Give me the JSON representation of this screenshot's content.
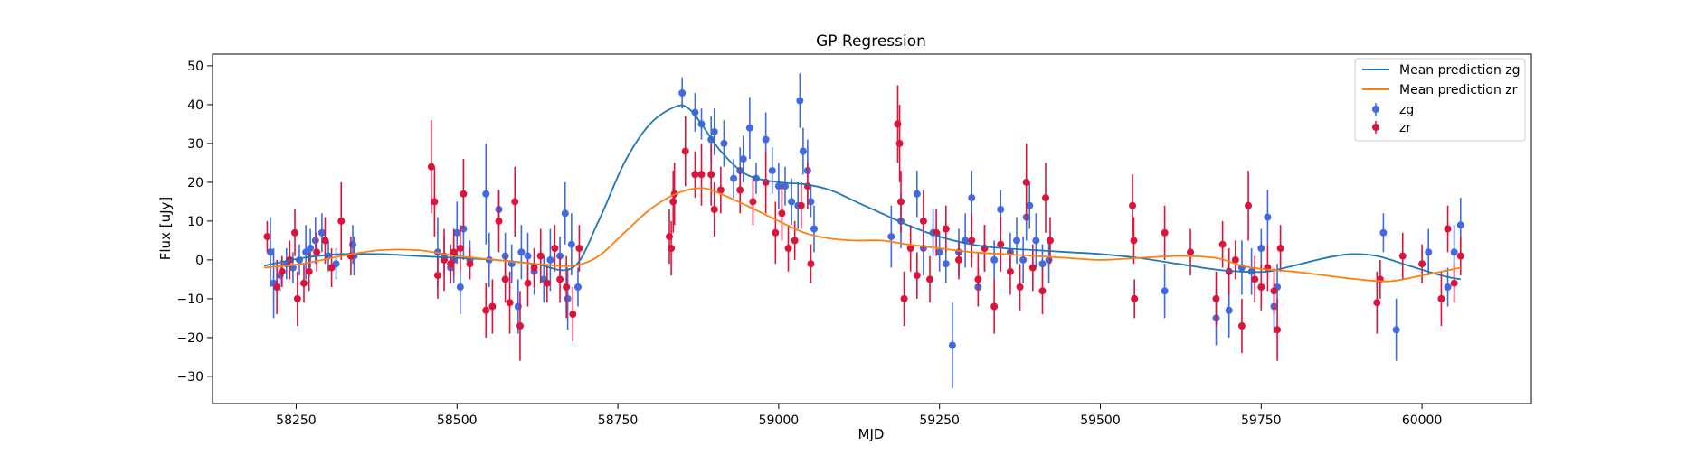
{
  "chart_data": {
    "type": "scatter",
    "title": "GP Regression",
    "xlabel": "MJD",
    "ylabel": "Flux [uJy]",
    "xlim": [
      58120,
      60170
    ],
    "ylim": [
      -37,
      53
    ],
    "xticks": [
      58250,
      58500,
      58750,
      59000,
      59250,
      59500,
      59750,
      60000
    ],
    "yticks": [
      -30,
      -20,
      -10,
      0,
      10,
      20,
      30,
      40,
      50
    ],
    "grid": false,
    "legend_position": "top-right",
    "legend": [
      {
        "label": "Mean prediction zg",
        "kind": "line",
        "color": "#1f77b4"
      },
      {
        "label": "Mean prediction zr",
        "kind": "line",
        "color": "#ff7f0e"
      },
      {
        "label": "zg",
        "kind": "errorbar",
        "color": "#4169e1"
      },
      {
        "label": "zr",
        "kind": "errorbar",
        "color": "#dc143c"
      }
    ],
    "series": [
      {
        "name": "Mean prediction zg",
        "kind": "line",
        "color": "#1f77b4",
        "x": [
          58200,
          58260,
          58320,
          58380,
          58440,
          58500,
          58560,
          58620,
          58680,
          58720,
          58760,
          58800,
          58840,
          58860,
          58880,
          58910,
          58950,
          59000,
          59040,
          59080,
          59120,
          59160,
          59200,
          59250,
          59300,
          59350,
          59400,
          59450,
          59500,
          59560,
          59620,
          59680,
          59720,
          59760,
          59800,
          59850,
          59890,
          59930,
          59980,
          60030,
          60060
        ],
        "y": [
          -1.5,
          0.5,
          1.5,
          1.5,
          1.0,
          0.5,
          0.0,
          -1.0,
          -2.0,
          10.0,
          25.0,
          35.0,
          39.5,
          39.0,
          35.0,
          28.0,
          22.0,
          20.0,
          19.5,
          18.0,
          15.0,
          12.0,
          9.0,
          6.0,
          4.0,
          3.0,
          2.5,
          2.0,
          1.5,
          0.5,
          -1.0,
          -2.5,
          -3.0,
          -3.0,
          -1.5,
          0.5,
          1.5,
          1.0,
          -1.5,
          -4.0,
          -5.0
        ]
      },
      {
        "name": "Mean prediction zr",
        "kind": "line",
        "color": "#ff7f0e",
        "x": [
          58200,
          58260,
          58320,
          58380,
          58440,
          58500,
          58560,
          58620,
          58680,
          58720,
          58760,
          58800,
          58840,
          58880,
          58910,
          58950,
          59000,
          59040,
          59080,
          59120,
          59160,
          59200,
          59250,
          59300,
          59350,
          59400,
          59450,
          59500,
          59560,
          59620,
          59680,
          59720,
          59760,
          59800,
          59850,
          59900,
          59950,
          60000,
          60060
        ],
        "y": [
          -2.0,
          -1.0,
          1.0,
          2.5,
          2.5,
          1.0,
          0.0,
          -1.0,
          -1.5,
          1.0,
          7.0,
          13.0,
          17.0,
          18.5,
          17.0,
          14.0,
          10.0,
          7.0,
          5.5,
          5.0,
          5.0,
          4.0,
          3.0,
          2.0,
          1.5,
          1.0,
          0.5,
          0.0,
          0.5,
          1.0,
          0.5,
          -1.5,
          -2.5,
          -3.0,
          -4.0,
          -5.0,
          -5.5,
          -4.0,
          -2.0
        ]
      },
      {
        "name": "zg",
        "kind": "errorbar",
        "color": "#4169e1",
        "points": [
          [
            58210,
            2,
            9
          ],
          [
            58215,
            -6,
            9
          ],
          [
            58225,
            -4,
            4
          ],
          [
            58235,
            -1,
            4
          ],
          [
            58245,
            -2,
            4
          ],
          [
            58255,
            0,
            4
          ],
          [
            58265,
            2,
            7
          ],
          [
            58272,
            3,
            5
          ],
          [
            58280,
            5,
            6
          ],
          [
            58290,
            7,
            5
          ],
          [
            58300,
            1,
            4
          ],
          [
            58312,
            -1,
            4
          ],
          [
            58338,
            4,
            5
          ],
          [
            58340,
            1,
            5
          ],
          [
            58470,
            2,
            9
          ],
          [
            58480,
            1,
            5
          ],
          [
            58490,
            -2,
            4
          ],
          [
            58495,
            0,
            6
          ],
          [
            58500,
            7,
            8
          ],
          [
            58505,
            -7,
            7
          ],
          [
            58510,
            8,
            8
          ],
          [
            58520,
            0,
            5
          ],
          [
            58545,
            17,
            13
          ],
          [
            58550,
            0,
            7
          ],
          [
            58565,
            13,
            5
          ],
          [
            58575,
            1,
            6
          ],
          [
            58585,
            -1,
            5
          ],
          [
            58595,
            -12,
            7
          ],
          [
            58600,
            2,
            7
          ],
          [
            58610,
            1,
            6
          ],
          [
            58620,
            -3,
            6
          ],
          [
            58635,
            -5,
            6
          ],
          [
            58645,
            0,
            8
          ],
          [
            58660,
            1,
            5
          ],
          [
            58668,
            12,
            8
          ],
          [
            58672,
            -10,
            8
          ],
          [
            58678,
            4,
            8
          ],
          [
            58688,
            -7,
            5
          ],
          [
            58850,
            43,
            4
          ],
          [
            58870,
            38,
            5
          ],
          [
            58880,
            35,
            4
          ],
          [
            58895,
            31,
            6
          ],
          [
            58900,
            33,
            6
          ],
          [
            58915,
            30,
            6
          ],
          [
            58930,
            21,
            5
          ],
          [
            58940,
            23,
            6
          ],
          [
            58945,
            26,
            6
          ],
          [
            58955,
            34,
            8
          ],
          [
            58965,
            21,
            4
          ],
          [
            58980,
            31,
            7
          ],
          [
            58990,
            23,
            6
          ],
          [
            59000,
            19,
            6
          ],
          [
            59010,
            19,
            5
          ],
          [
            59020,
            15,
            6
          ],
          [
            59030,
            14,
            6
          ],
          [
            59033,
            41,
            7
          ],
          [
            59038,
            28,
            6
          ],
          [
            59045,
            23,
            8
          ],
          [
            59050,
            15,
            4
          ],
          [
            59055,
            8,
            6
          ],
          [
            59175,
            6,
            8
          ],
          [
            59190,
            10,
            7
          ],
          [
            59215,
            17,
            6
          ],
          [
            59225,
            3,
            7
          ],
          [
            59240,
            7,
            6
          ],
          [
            59250,
            2,
            5
          ],
          [
            59260,
            -1,
            5
          ],
          [
            59270,
            -22,
            11
          ],
          [
            59280,
            2,
            6
          ],
          [
            59290,
            5,
            7
          ],
          [
            59300,
            16,
            7
          ],
          [
            59310,
            -7,
            5
          ],
          [
            59320,
            3,
            6
          ],
          [
            59335,
            0,
            5
          ],
          [
            59345,
            13,
            5
          ],
          [
            59360,
            2,
            5
          ],
          [
            59370,
            5,
            6
          ],
          [
            59380,
            0,
            6
          ],
          [
            59385,
            11,
            6
          ],
          [
            59390,
            14,
            6
          ],
          [
            59400,
            5,
            7
          ],
          [
            59410,
            -1,
            5
          ],
          [
            59420,
            0,
            6
          ],
          [
            59600,
            -8,
            7
          ],
          [
            59680,
            -15,
            7
          ],
          [
            59700,
            -13,
            7
          ],
          [
            59720,
            -2,
            7
          ],
          [
            59735,
            -3,
            6
          ],
          [
            59750,
            3,
            5
          ],
          [
            59760,
            11,
            7
          ],
          [
            59770,
            -12,
            7
          ],
          [
            59775,
            -7,
            6
          ],
          [
            59940,
            7,
            5
          ],
          [
            59960,
            -18,
            8
          ],
          [
            60010,
            2,
            6
          ],
          [
            60040,
            -7,
            5
          ],
          [
            60050,
            2,
            7
          ],
          [
            60060,
            9,
            7
          ]
        ]
      },
      {
        "name": "zr",
        "kind": "errorbar",
        "color": "#dc143c",
        "points": [
          [
            58205,
            6,
            4
          ],
          [
            58220,
            -7,
            7
          ],
          [
            58228,
            -3,
            4
          ],
          [
            58240,
            0,
            5
          ],
          [
            58248,
            7,
            6
          ],
          [
            58252,
            -10,
            7
          ],
          [
            58262,
            -6,
            5
          ],
          [
            58270,
            -3,
            5
          ],
          [
            58282,
            2,
            5
          ],
          [
            58295,
            5,
            6
          ],
          [
            58305,
            -2,
            5
          ],
          [
            58320,
            10,
            10
          ],
          [
            58335,
            1,
            5
          ],
          [
            58460,
            24,
            12
          ],
          [
            58465,
            15,
            9
          ],
          [
            58470,
            -4,
            6
          ],
          [
            58480,
            0,
            8
          ],
          [
            58490,
            -1,
            5
          ],
          [
            58495,
            2,
            6
          ],
          [
            58505,
            3,
            6
          ],
          [
            58510,
            17,
            9
          ],
          [
            58520,
            -1,
            4
          ],
          [
            58545,
            -13,
            7
          ],
          [
            58555,
            -12,
            7
          ],
          [
            58565,
            10,
            8
          ],
          [
            58575,
            -5,
            6
          ],
          [
            58582,
            -11,
            8
          ],
          [
            58590,
            15,
            9
          ],
          [
            58598,
            -17,
            9
          ],
          [
            58610,
            -6,
            6
          ],
          [
            58620,
            -2,
            5
          ],
          [
            58630,
            1,
            7
          ],
          [
            58640,
            -6,
            5
          ],
          [
            58652,
            3,
            6
          ],
          [
            58660,
            -5,
            6
          ],
          [
            58670,
            -7,
            8
          ],
          [
            58680,
            -14,
            7
          ],
          [
            58690,
            3,
            6
          ],
          [
            58830,
            6,
            7
          ],
          [
            58833,
            3,
            7
          ],
          [
            58836,
            15,
            8
          ],
          [
            58838,
            17,
            8
          ],
          [
            58855,
            28,
            9
          ],
          [
            58870,
            22,
            6
          ],
          [
            58880,
            22,
            8
          ],
          [
            58895,
            22,
            8
          ],
          [
            58900,
            13,
            7
          ],
          [
            58910,
            18,
            6
          ],
          [
            58940,
            18,
            6
          ],
          [
            58960,
            15,
            6
          ],
          [
            58980,
            20,
            8
          ],
          [
            58995,
            7,
            8
          ],
          [
            59005,
            12,
            7
          ],
          [
            59015,
            3,
            6
          ],
          [
            59025,
            5,
            5
          ],
          [
            59035,
            14,
            6
          ],
          [
            59045,
            19,
            6
          ],
          [
            59050,
            -1,
            5
          ],
          [
            59185,
            35,
            10
          ],
          [
            59188,
            30,
            10
          ],
          [
            59190,
            15,
            8
          ],
          [
            59195,
            -10,
            7
          ],
          [
            59205,
            3,
            6
          ],
          [
            59215,
            -4,
            6
          ],
          [
            59225,
            10,
            8
          ],
          [
            59235,
            -5,
            6
          ],
          [
            59245,
            7,
            6
          ],
          [
            59260,
            8,
            6
          ],
          [
            59280,
            0,
            5
          ],
          [
            59300,
            5,
            7
          ],
          [
            59310,
            -5,
            7
          ],
          [
            59320,
            3,
            6
          ],
          [
            59335,
            -12,
            7
          ],
          [
            59345,
            4,
            7
          ],
          [
            59360,
            -3,
            6
          ],
          [
            59375,
            -7,
            6
          ],
          [
            59385,
            20,
            10
          ],
          [
            59395,
            -2,
            6
          ],
          [
            59410,
            -8,
            6
          ],
          [
            59415,
            16,
            9
          ],
          [
            59422,
            5,
            6
          ],
          [
            59550,
            14,
            8
          ],
          [
            59552,
            5,
            6
          ],
          [
            59553,
            -10,
            5
          ],
          [
            59600,
            7,
            7
          ],
          [
            59640,
            2,
            6
          ],
          [
            59680,
            -10,
            7
          ],
          [
            59690,
            4,
            6
          ],
          [
            59700,
            -3,
            6
          ],
          [
            59710,
            0,
            5
          ],
          [
            59720,
            -17,
            7
          ],
          [
            59730,
            14,
            9
          ],
          [
            59740,
            -5,
            6
          ],
          [
            59750,
            -7,
            6
          ],
          [
            59760,
            -2,
            6
          ],
          [
            59770,
            -8,
            6
          ],
          [
            59775,
            -18,
            8
          ],
          [
            59780,
            3,
            6
          ],
          [
            59930,
            -11,
            8
          ],
          [
            59935,
            -5,
            5
          ],
          [
            59970,
            1,
            6
          ],
          [
            60000,
            -1,
            5
          ],
          [
            60030,
            -10,
            7
          ],
          [
            60040,
            8,
            6
          ],
          [
            60050,
            -6,
            5
          ],
          [
            60060,
            1,
            5
          ]
        ]
      }
    ]
  }
}
